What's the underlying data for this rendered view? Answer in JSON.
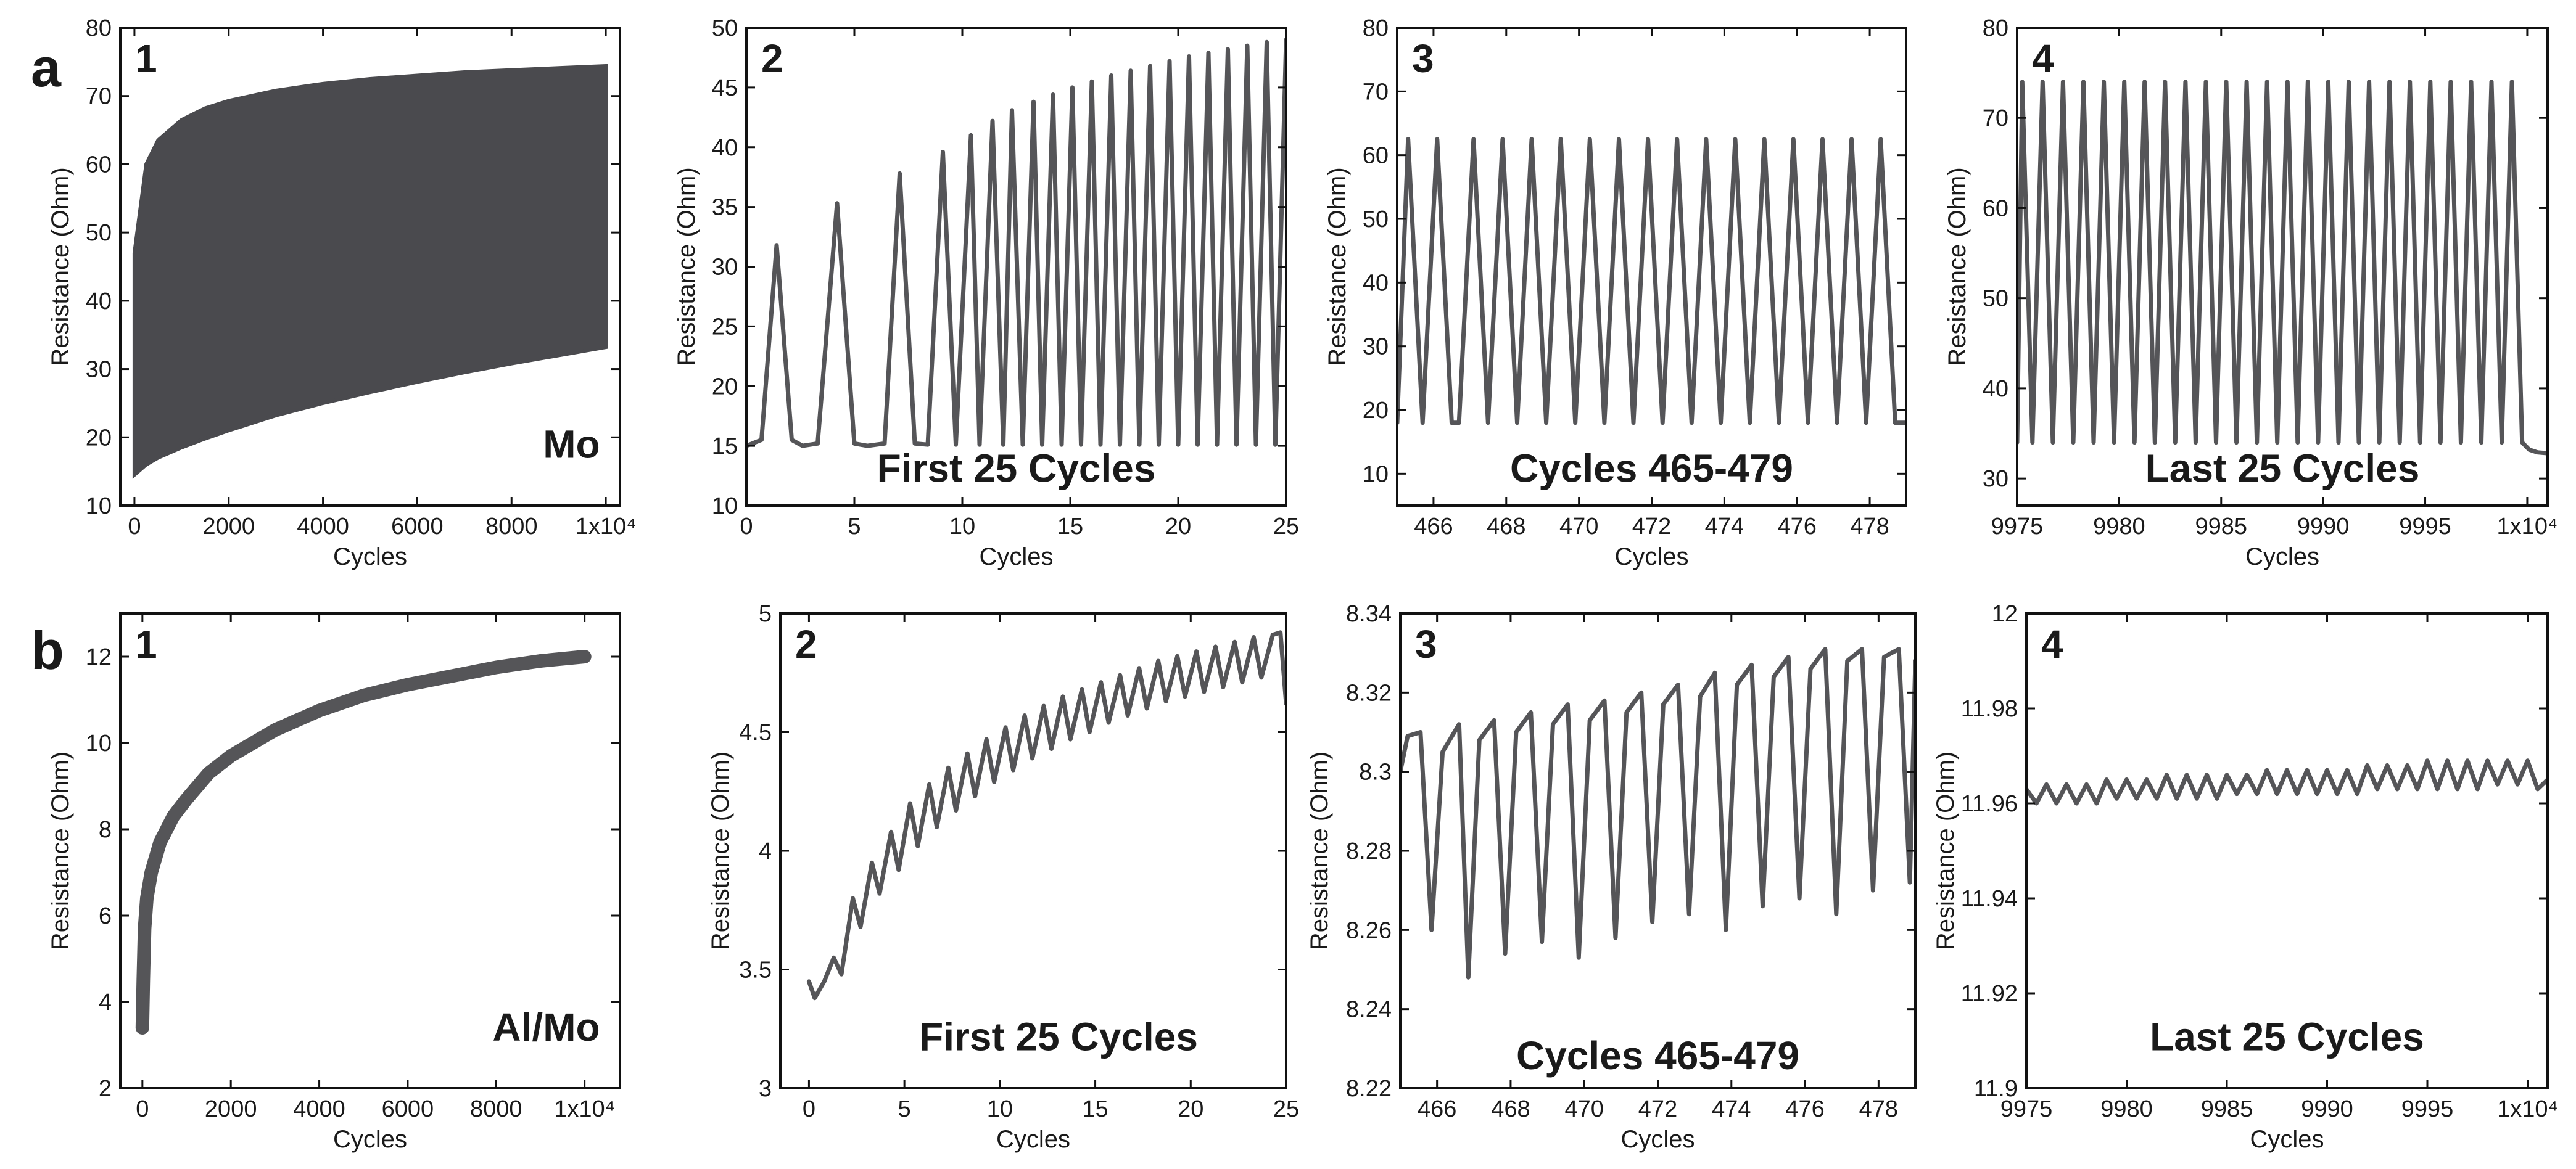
{
  "colors": {
    "series": "#555558",
    "fill": "#4a4a4e",
    "axis": "#111111",
    "text": "#1a1a1a"
  },
  "row_labels": [
    "a",
    "b"
  ],
  "chart_data": [
    {
      "row": "a",
      "panel": "1",
      "type": "area",
      "annotation": "Mo",
      "xlabel": "Cycles",
      "ylabel": "Resistance (Ohm)",
      "xlim": [
        -300,
        10300
      ],
      "ylim": [
        10,
        80
      ],
      "xticks": [
        0,
        2000,
        4000,
        6000,
        8000,
        10000
      ],
      "xtick_labels": [
        "0",
        "2000",
        "4000",
        "6000",
        "8000",
        "1x10⁴"
      ],
      "yticks": [
        10,
        20,
        30,
        40,
        50,
        60,
        70,
        80
      ],
      "ytick_labels": [
        "10",
        "20",
        "30",
        "40",
        "50",
        "60",
        "70",
        "80"
      ],
      "series": [
        {
          "x": [
            0,
            250,
            500,
            1000,
            1500,
            2000,
            3000,
            4000,
            5000,
            6000,
            7000,
            8000,
            9000,
            10000
          ],
          "upper": [
            47,
            60,
            63.5,
            66.5,
            68.2,
            69.3,
            70.8,
            71.8,
            72.5,
            73,
            73.5,
            73.8,
            74.1,
            74.4
          ],
          "lower": [
            14.5,
            16,
            17,
            18.5,
            19.8,
            21,
            23.2,
            25,
            26.6,
            28.1,
            29.5,
            30.8,
            32,
            33.2
          ]
        }
      ]
    },
    {
      "row": "a",
      "panel": "2",
      "type": "line",
      "annotation": "First 25 Cycles",
      "xlabel": "Cycles",
      "ylabel": "Resistance (Ohm)",
      "xlim": [
        0,
        25
      ],
      "ylim": [
        10,
        50
      ],
      "xticks": [
        0,
        5,
        10,
        15,
        20,
        25
      ],
      "xtick_labels": [
        "0",
        "5",
        "10",
        "15",
        "20",
        "25"
      ],
      "yticks": [
        10,
        15,
        20,
        25,
        30,
        35,
        40,
        45,
        50
      ],
      "ytick_labels": [
        "10",
        "15",
        "20",
        "25",
        "30",
        "35",
        "40",
        "45",
        "50"
      ],
      "series": [
        {
          "x": [
            0,
            0.7,
            1.4,
            2.1,
            2.6,
            3.3,
            4.2,
            5.0,
            5.6,
            6.4,
            7.1,
            7.8,
            8.4,
            9.1,
            9.7,
            10.4,
            10.8,
            11.4,
            11.9,
            12.3,
            12.8,
            13.3,
            13.7,
            14.2,
            14.6,
            15.1,
            15.5,
            16.0,
            16.4,
            16.9,
            17.3,
            17.8,
            18.2,
            18.7,
            19.1,
            19.6,
            20.0,
            20.5,
            20.9,
            21.4,
            21.8,
            22.3,
            22.7,
            23.2,
            23.6,
            24.1,
            24.5,
            25.0
          ],
          "y": [
            15,
            15.5,
            31.8,
            15.5,
            15,
            15.2,
            35.3,
            15.2,
            15,
            15.2,
            37.8,
            15.2,
            15.1,
            39.6,
            15.1,
            41,
            15.1,
            42.2,
            15.1,
            43.1,
            15.1,
            43.8,
            15.1,
            44.4,
            15.1,
            45,
            15.1,
            45.5,
            15.1,
            46,
            15.1,
            46.4,
            15.1,
            46.8,
            15.1,
            47.2,
            15.1,
            47.6,
            15.1,
            47.9,
            15.1,
            48.2,
            15.1,
            48.5,
            15.1,
            48.8,
            15.1,
            49
          ]
        }
      ]
    },
    {
      "row": "a",
      "panel": "3",
      "type": "line",
      "annotation": "Cycles 465-479",
      "xlabel": "Cycles",
      "ylabel": "Resistance (Ohm)",
      "xlim": [
        465,
        479
      ],
      "ylim": [
        5,
        80
      ],
      "xticks": [
        466,
        468,
        470,
        472,
        474,
        476,
        478
      ],
      "xtick_labels": [
        "466",
        "468",
        "470",
        "472",
        "474",
        "476",
        "478"
      ],
      "yticks": [
        10,
        20,
        30,
        40,
        50,
        60,
        70,
        80
      ],
      "ytick_labels": [
        "10",
        "20",
        "30",
        "40",
        "50",
        "60",
        "70",
        "80"
      ],
      "series": [
        {
          "x": [
            465.0,
            465.3,
            465.7,
            466.1,
            466.5,
            466.7,
            467.1,
            467.5,
            467.9,
            468.3,
            468.7,
            469.1,
            469.5,
            469.9,
            470.3,
            470.7,
            471.1,
            471.5,
            471.9,
            472.3,
            472.7,
            473.1,
            473.5,
            473.9,
            474.3,
            474.7,
            475.1,
            475.5,
            475.9,
            476.3,
            476.7,
            477.1,
            477.5,
            477.9,
            478.3,
            478.7,
            479.0
          ],
          "y": [
            18,
            62.5,
            18,
            62.5,
            18,
            18,
            62.5,
            18,
            62.5,
            18,
            62.5,
            18,
            62.5,
            18,
            62.5,
            18,
            62.5,
            18,
            62.5,
            18,
            62.5,
            18,
            62.5,
            18,
            62.5,
            18,
            62.5,
            18,
            62.5,
            18,
            62.5,
            18,
            62.5,
            18,
            62.5,
            18,
            18
          ]
        }
      ]
    },
    {
      "row": "a",
      "panel": "4",
      "type": "line",
      "annotation": "Last 25 Cycles",
      "xlabel": "Cycles",
      "ylabel": "Resistance (Ohm)",
      "xlim": [
        9975,
        10001
      ],
      "ylim": [
        27,
        80
      ],
      "xticks": [
        9975,
        9980,
        9985,
        9990,
        9995,
        10000
      ],
      "xtick_labels": [
        "9975",
        "9980",
        "9985",
        "9990",
        "9995",
        "1x10⁴"
      ],
      "yticks": [
        30,
        40,
        50,
        60,
        70,
        80
      ],
      "ytick_labels": [
        "30",
        "40",
        "50",
        "60",
        "70",
        "80"
      ],
      "series": [
        {
          "x": [
            9975.0,
            9975.25,
            9975.75,
            9976.25,
            9976.75,
            9977.25,
            9977.75,
            9978.25,
            9978.75,
            9979.25,
            9979.75,
            9980.25,
            9980.75,
            9981.25,
            9981.75,
            9982.25,
            9982.75,
            9983.25,
            9983.75,
            9984.25,
            9984.75,
            9985.25,
            9985.75,
            9986.25,
            9986.75,
            9987.25,
            9987.75,
            9988.25,
            9988.75,
            9989.25,
            9989.75,
            9990.25,
            9990.75,
            9991.25,
            9991.75,
            9992.25,
            9992.75,
            9993.25,
            9993.75,
            9994.25,
            9994.75,
            9995.25,
            9995.75,
            9996.25,
            9996.75,
            9997.25,
            9997.75,
            9998.25,
            9998.75,
            9999.25,
            9999.75,
            10000.1,
            10000.5,
            10001.0
          ],
          "y": [
            34,
            74,
            34,
            74,
            34,
            74,
            34,
            74,
            34,
            74,
            34,
            74,
            34,
            74,
            34,
            74,
            34,
            74,
            34,
            74,
            34,
            74,
            34,
            74,
            34,
            74,
            34,
            74,
            34,
            74,
            34,
            74,
            34,
            74,
            34,
            74,
            34,
            74,
            34,
            74,
            34,
            74,
            34,
            74,
            34,
            74,
            34,
            74,
            34,
            74,
            34,
            33.2,
            32.9,
            32.8
          ]
        }
      ]
    },
    {
      "row": "b",
      "panel": "1",
      "type": "line",
      "annotation": "Al/Mo",
      "xlabel": "Cycles",
      "ylabel": "Resistance (Ohm)",
      "xlim": [
        -500,
        10800
      ],
      "ylim": [
        2,
        13
      ],
      "xticks": [
        0,
        2000,
        4000,
        6000,
        8000,
        10000
      ],
      "xtick_labels": [
        "0",
        "2000",
        "4000",
        "6000",
        "8000",
        "1x10⁴"
      ],
      "yticks": [
        2,
        4,
        6,
        8,
        10,
        12
      ],
      "ytick_labels": [
        "2",
        "4",
        "6",
        "8",
        "10",
        "12"
      ],
      "series": [
        {
          "x": [
            0,
            20,
            50,
            100,
            200,
            400,
            700,
            1000,
            1500,
            2000,
            3000,
            4000,
            5000,
            6000,
            7000,
            8000,
            9000,
            10000
          ],
          "y": [
            3.4,
            4.5,
            5.7,
            6.4,
            7.0,
            7.7,
            8.3,
            8.7,
            9.3,
            9.7,
            10.3,
            10.75,
            11.1,
            11.35,
            11.55,
            11.75,
            11.9,
            12.0
          ]
        }
      ]
    },
    {
      "row": "b",
      "panel": "2",
      "type": "line",
      "annotation": "First 25 Cycles",
      "xlabel": "Cycles",
      "ylabel": "Resistance (Ohm)",
      "xlim": [
        -1.5,
        25
      ],
      "ylim": [
        3,
        5
      ],
      "xticks": [
        0,
        5,
        10,
        15,
        20,
        25
      ],
      "xtick_labels": [
        "0",
        "5",
        "10",
        "15",
        "20",
        "25"
      ],
      "yticks": [
        3,
        3.5,
        4,
        4.5,
        5
      ],
      "ytick_labels": [
        "3",
        "3.5",
        "4",
        "4.5",
        "5"
      ],
      "series": [
        {
          "x": [
            0,
            0.3,
            0.8,
            1.3,
            1.7,
            2.3,
            2.7,
            3.3,
            3.7,
            4.3,
            4.7,
            5.3,
            5.7,
            6.3,
            6.7,
            7.3,
            7.7,
            8.3,
            8.7,
            9.3,
            9.7,
            10.3,
            10.7,
            11.3,
            11.7,
            12.3,
            12.7,
            13.3,
            13.7,
            14.3,
            14.7,
            15.3,
            15.7,
            16.3,
            16.7,
            17.3,
            17.7,
            18.3,
            18.7,
            19.3,
            19.7,
            20.3,
            20.7,
            21.3,
            21.7,
            22.3,
            22.7,
            23.3,
            23.7,
            24.3,
            24.7,
            25.0
          ],
          "y": [
            3.45,
            3.38,
            3.45,
            3.55,
            3.48,
            3.8,
            3.68,
            3.95,
            3.82,
            4.08,
            3.92,
            4.2,
            4.02,
            4.28,
            4.1,
            4.35,
            4.17,
            4.41,
            4.23,
            4.47,
            4.29,
            4.52,
            4.34,
            4.57,
            4.39,
            4.61,
            4.43,
            4.65,
            4.47,
            4.68,
            4.5,
            4.71,
            4.54,
            4.74,
            4.57,
            4.77,
            4.6,
            4.8,
            4.63,
            4.82,
            4.65,
            4.84,
            4.67,
            4.86,
            4.69,
            4.88,
            4.71,
            4.9,
            4.73,
            4.91,
            4.92,
            4.62
          ]
        }
      ]
    },
    {
      "row": "b",
      "panel": "3",
      "type": "line",
      "annotation": "Cycles 465-479",
      "xlabel": "Cycles",
      "ylabel": "Resistance (Ohm)",
      "xlim": [
        465,
        479
      ],
      "ylim": [
        8.22,
        8.34
      ],
      "xticks": [
        466,
        468,
        470,
        472,
        474,
        476,
        478
      ],
      "xtick_labels": [
        "466",
        "468",
        "470",
        "472",
        "474",
        "476",
        "478"
      ],
      "yticks": [
        8.22,
        8.24,
        8.26,
        8.28,
        8.3,
        8.32,
        8.34
      ],
      "ytick_labels": [
        "8.22",
        "8.24",
        "8.26",
        "8.28",
        "8.3",
        "8.32",
        "8.34"
      ],
      "series": [
        {
          "x": [
            465.0,
            465.2,
            465.55,
            465.85,
            466.15,
            466.6,
            466.85,
            467.15,
            467.55,
            467.85,
            468.15,
            468.55,
            468.85,
            469.15,
            469.55,
            469.85,
            470.15,
            470.55,
            470.85,
            471.15,
            471.55,
            471.85,
            472.15,
            472.55,
            472.85,
            473.15,
            473.55,
            473.85,
            474.15,
            474.55,
            474.85,
            475.15,
            475.55,
            475.85,
            476.15,
            476.55,
            476.85,
            477.15,
            477.55,
            477.85,
            478.15,
            478.55,
            478.85,
            479.0
          ],
          "y": [
            8.3,
            8.309,
            8.31,
            8.26,
            8.305,
            8.312,
            8.248,
            8.308,
            8.313,
            8.254,
            8.31,
            8.315,
            8.257,
            8.312,
            8.317,
            8.253,
            8.313,
            8.318,
            8.258,
            8.315,
            8.32,
            8.262,
            8.317,
            8.322,
            8.264,
            8.319,
            8.325,
            8.26,
            8.322,
            8.327,
            8.266,
            8.324,
            8.329,
            8.268,
            8.326,
            8.331,
            8.264,
            8.328,
            8.331,
            8.27,
            8.329,
            8.331,
            8.272,
            8.328
          ]
        }
      ]
    },
    {
      "row": "b",
      "panel": "4",
      "type": "line",
      "annotation": "Last 25 Cycles",
      "xlabel": "Cycles",
      "ylabel": "Resistance (Ohm)",
      "xlim": [
        9975,
        10001
      ],
      "ylim": [
        11.9,
        12
      ],
      "xticks": [
        9975,
        9980,
        9985,
        9990,
        9995,
        10000
      ],
      "xtick_labels": [
        "9975",
        "9980",
        "9985",
        "9990",
        "9995",
        "1x10⁴"
      ],
      "yticks": [
        11.9,
        11.92,
        11.94,
        11.96,
        11.98,
        12
      ],
      "ytick_labels": [
        "11.9",
        "11.92",
        "11.94",
        "11.96",
        "11.98",
        "12"
      ],
      "series": [
        {
          "x": [
            9975.0,
            9975.5,
            9976.0,
            9976.5,
            9977.0,
            9977.5,
            9978.0,
            9978.5,
            9979.0,
            9979.5,
            9980.0,
            9980.5,
            9981.0,
            9981.5,
            9982.0,
            9982.5,
            9983.0,
            9983.5,
            9984.0,
            9984.5,
            9985.0,
            9985.5,
            9986.0,
            9986.5,
            9987.0,
            9987.5,
            9988.0,
            9988.5,
            9989.0,
            9989.5,
            9990.0,
            9990.5,
            9991.0,
            9991.5,
            9992.0,
            9992.5,
            9993.0,
            9993.5,
            9994.0,
            9994.5,
            9995.0,
            9995.5,
            9996.0,
            9996.5,
            9997.0,
            9997.5,
            9998.0,
            9998.5,
            9999.0,
            9999.5,
            10000.0,
            10000.5,
            10001.0
          ],
          "y": [
            11.963,
            11.96,
            11.964,
            11.96,
            11.964,
            11.96,
            11.964,
            11.96,
            11.965,
            11.961,
            11.965,
            11.961,
            11.965,
            11.961,
            11.966,
            11.961,
            11.966,
            11.961,
            11.966,
            11.961,
            11.966,
            11.962,
            11.966,
            11.962,
            11.967,
            11.962,
            11.967,
            11.962,
            11.967,
            11.962,
            11.967,
            11.962,
            11.967,
            11.962,
            11.968,
            11.963,
            11.968,
            11.963,
            11.968,
            11.963,
            11.969,
            11.963,
            11.969,
            11.963,
            11.969,
            11.963,
            11.969,
            11.964,
            11.969,
            11.964,
            11.969,
            11.963,
            11.965
          ]
        }
      ]
    }
  ]
}
